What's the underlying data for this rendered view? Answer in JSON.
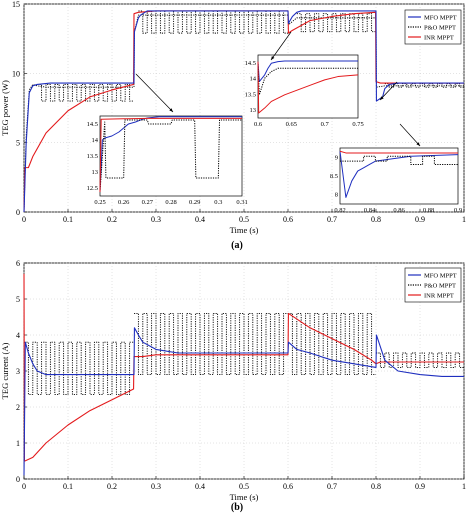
{
  "figure_labels": [
    "(a)",
    "(b)"
  ],
  "chart_data": [
    {
      "id": "a",
      "type": "line",
      "panel_label": "(a)",
      "xlabel": "Time (s)",
      "ylabel": "TEG power (W)",
      "xlim": [
        0,
        1
      ],
      "ylim": [
        0,
        15
      ],
      "xticks": [
        0,
        0.1,
        0.2,
        0.3,
        0.4,
        0.5,
        0.6,
        0.7,
        0.8,
        0.9,
        1
      ],
      "xtick_labels": [
        "0",
        "0.1",
        "0.2",
        "0.3",
        "0.4",
        "0.5",
        "0.6",
        "0.7",
        "0.8",
        "0.9",
        "1"
      ],
      "yticks": [
        0,
        5,
        10,
        15
      ],
      "ytick_labels": [
        "0",
        "5",
        "10",
        "15"
      ],
      "grid": true,
      "legend_position": "top-right",
      "series": [
        {
          "name": "MFO MPPT",
          "color": "#1f2fbf",
          "style": "solid",
          "x": [
            0,
            0.005,
            0.012,
            0.02,
            0.03,
            0.06,
            0.1,
            0.15,
            0.2,
            0.25,
            0.251,
            0.26,
            0.265,
            0.27,
            0.28,
            0.3,
            0.4,
            0.5,
            0.6,
            0.601,
            0.61,
            0.62,
            0.63,
            0.65,
            0.7,
            0.8,
            0.801,
            0.815,
            0.82,
            0.83,
            0.85,
            0.9,
            1.0
          ],
          "y": [
            0,
            5,
            8.6,
            9.1,
            9.2,
            9.3,
            9.3,
            9.3,
            9.3,
            9.3,
            13.0,
            14.0,
            14.2,
            14.3,
            14.5,
            14.5,
            14.5,
            14.5,
            14.5,
            13.6,
            14.1,
            14.4,
            14.5,
            14.5,
            14.5,
            14.5,
            8.0,
            8.3,
            8.9,
            9.2,
            9.3,
            9.3,
            9.3
          ]
        },
        {
          "name": "P&O MPPT",
          "color": "#000000",
          "style": "dotted",
          "x": [
            0,
            0.005,
            0.012,
            0.02,
            0.03,
            0.05,
            0.1,
            0.2,
            0.25,
            0.251,
            0.26,
            0.3,
            0.4,
            0.5,
            0.6,
            0.601,
            0.62,
            0.7,
            0.8,
            0.801,
            0.82,
            0.9,
            1.0
          ],
          "y": [
            0,
            5.5,
            8.8,
            9.2,
            9.1,
            9.0,
            9.0,
            9.0,
            9.0,
            13.0,
            14.2,
            14.2,
            14.2,
            14.2,
            14.2,
            13.5,
            14.0,
            14.0,
            14.0,
            9.0,
            9.1,
            9.1,
            9.1
          ]
        },
        {
          "name": "INR MPPT",
          "color": "#e31a1c",
          "style": "solid",
          "x": [
            0,
            0.002,
            0.01,
            0.02,
            0.05,
            0.1,
            0.15,
            0.2,
            0.249,
            0.25,
            0.26,
            0.3,
            0.4,
            0.5,
            0.6,
            0.601,
            0.61,
            0.65,
            0.7,
            0.75,
            0.799,
            0.8,
            0.81,
            0.82,
            0.85,
            0.9,
            1.0
          ],
          "y": [
            0,
            3.2,
            3.2,
            4.0,
            5.7,
            7.3,
            8.3,
            8.8,
            9.2,
            14.3,
            14.4,
            14.5,
            14.5,
            14.5,
            14.5,
            12.9,
            13.1,
            13.8,
            14.1,
            14.3,
            14.4,
            9.4,
            9.3,
            9.3,
            9.3,
            9.3,
            9.3
          ]
        }
      ],
      "po_oscillation": {
        "amplitude_low": [
          8.0,
          12.9,
          12.9,
          9.0
        ],
        "period": 0.02,
        "duty_low": 0.5
      },
      "insets": [
        {
          "id": "a-inset-1",
          "xlim": [
            0.25,
            0.31
          ],
          "ylim": [
            12.5,
            14.5
          ],
          "xtick_labels": [
            "0.25",
            "0.26",
            "0.27",
            "0.28",
            "0.29",
            "0.3",
            "0.31"
          ],
          "ytick_labels": [
            "12.5",
            "13",
            "13.5",
            "14",
            "14.5"
          ],
          "series": [
            {
              "name": "MFO MPPT",
              "x": [
                0.25,
                0.251,
                0.252,
                0.255,
                0.258,
                0.26,
                0.262,
                0.265,
                0.268,
                0.27,
                0.275,
                0.28,
                0.31
              ],
              "y": [
                12.6,
                13.9,
                13.95,
                14.0,
                14.1,
                14.2,
                14.3,
                14.35,
                14.42,
                14.45,
                14.48,
                14.48,
                14.48
              ]
            },
            {
              "name": "P&O MPPT",
              "x": [
                0.25,
                0.252,
                0.2525,
                0.26,
                0.2605,
                0.27,
                0.2705,
                0.28,
                0.2805,
                0.29,
                0.2905,
                0.3,
                0.3005,
                0.31
              ],
              "y": [
                12.6,
                14.35,
                12.95,
                12.95,
                14.4,
                14.4,
                14.3,
                14.3,
                14.4,
                14.4,
                12.95,
                12.95,
                14.4,
                14.4
              ]
            },
            {
              "name": "INR MPPT",
              "x": [
                0.25,
                0.2505,
                0.26,
                0.27,
                0.28,
                0.31
              ],
              "y": [
                12.6,
                14.42,
                14.43,
                14.44,
                14.44,
                14.44
              ]
            }
          ]
        },
        {
          "id": "a-inset-2",
          "xlim": [
            0.6,
            0.75
          ],
          "ylim": [
            12.8,
            14.7
          ],
          "xtick_labels": [
            "0.6",
            "0.65",
            "0.7",
            "0.75"
          ],
          "ytick_labels": [
            "13",
            "13.5",
            "14",
            "14.5"
          ],
          "series": [
            {
              "name": "MFO MPPT",
              "x": [
                0.6,
                0.602,
                0.61,
                0.615,
                0.62,
                0.63,
                0.64,
                0.65,
                0.7,
                0.75
              ],
              "y": [
                14.5,
                13.9,
                14.1,
                14.3,
                14.45,
                14.5,
                14.52,
                14.52,
                14.52,
                14.52
              ]
            },
            {
              "name": "P&O MPPT",
              "x": [
                0.6,
                0.602,
                0.61,
                0.62,
                0.63,
                0.65,
                0.7,
                0.75
              ],
              "y": [
                14.5,
                13.5,
                14.0,
                14.2,
                14.3,
                14.3,
                14.3,
                14.3
              ]
            },
            {
              "name": "INR MPPT",
              "x": [
                0.6,
                0.601,
                0.61,
                0.62,
                0.64,
                0.66,
                0.68,
                0.7,
                0.72,
                0.75
              ],
              "y": [
                14.5,
                12.95,
                13.1,
                13.3,
                13.5,
                13.65,
                13.8,
                13.95,
                14.05,
                14.1
              ]
            }
          ]
        },
        {
          "id": "a-inset-3",
          "xlim": [
            0.8,
            0.9
          ],
          "ylim": [
            7.8,
            9.5
          ],
          "xtick_labels": [
            "0.82",
            "0.84",
            "0.86",
            "0.88",
            "0.9"
          ],
          "ytick_labels": [
            "8",
            "8.5",
            "9"
          ],
          "series": [
            {
              "name": "MFO MPPT",
              "x": [
                0.8,
                0.805,
                0.81,
                0.815,
                0.82,
                0.825,
                0.83,
                0.84,
                0.85,
                0.86,
                0.9
              ],
              "y": [
                9.4,
                8.0,
                8.5,
                8.8,
                8.9,
                9.0,
                9.1,
                9.15,
                9.2,
                9.25,
                9.3
              ]
            },
            {
              "name": "P&O MPPT",
              "x": [
                0.8,
                0.82,
                0.82,
                0.83,
                0.83,
                0.84,
                0.84,
                0.86,
                0.86,
                0.87,
                0.87,
                0.88,
                0.88,
                0.9
              ],
              "y": [
                9.1,
                9.1,
                9.25,
                9.25,
                9.1,
                9.1,
                9.25,
                9.25,
                9.0,
                9.0,
                9.25,
                9.25,
                9.0,
                9.0
              ]
            },
            {
              "name": "INR MPPT",
              "x": [
                0.8,
                0.805,
                0.9
              ],
              "y": [
                9.4,
                9.35,
                9.35
              ]
            }
          ]
        }
      ]
    },
    {
      "id": "b",
      "type": "line",
      "panel_label": "(b)",
      "xlabel": "Time (s)",
      "ylabel": "TEG current (A)",
      "xlim": [
        0,
        1
      ],
      "ylim": [
        0,
        6
      ],
      "xticks": [
        0,
        0.1,
        0.2,
        0.3,
        0.4,
        0.5,
        0.6,
        0.7,
        0.8,
        0.9,
        1
      ],
      "xtick_labels": [
        "0",
        "0.1",
        "0.2",
        "0.3",
        "0.4",
        "0.5",
        "0.6",
        "0.7",
        "0.8",
        "0.9",
        "1"
      ],
      "yticks": [
        0,
        1,
        2,
        3,
        4,
        5,
        6
      ],
      "ytick_labels": [
        "0",
        "1",
        "2",
        "3",
        "4",
        "5",
        "6"
      ],
      "grid": true,
      "legend_position": "top-right",
      "series": [
        {
          "name": "MFO MPPT",
          "color": "#1f2fbf",
          "style": "solid",
          "x": [
            0,
            0.003,
            0.01,
            0.02,
            0.03,
            0.05,
            0.1,
            0.2,
            0.25,
            0.251,
            0.26,
            0.27,
            0.3,
            0.35,
            0.4,
            0.5,
            0.6,
            0.601,
            0.62,
            0.65,
            0.7,
            0.75,
            0.8,
            0.801,
            0.82,
            0.85,
            0.9,
            0.95,
            1.0
          ],
          "y": [
            0.1,
            3.8,
            3.5,
            3.2,
            3.0,
            2.9,
            2.9,
            2.9,
            2.9,
            4.2,
            4.0,
            3.8,
            3.6,
            3.5,
            3.5,
            3.5,
            3.5,
            3.8,
            3.6,
            3.5,
            3.3,
            3.2,
            3.1,
            4.0,
            3.3,
            3.0,
            2.9,
            2.85,
            2.85
          ]
        },
        {
          "name": "P&O MPPT",
          "color": "#000000",
          "style": "dotted",
          "levels": {
            "p1": [
              2.9,
              3.8
            ],
            "p2": [
              2.9,
              4.6
            ],
            "p3": [
              2.9,
              4.6
            ],
            "p4": [
              3.1,
              3.5
            ]
          }
        },
        {
          "name": "INR MPPT",
          "color": "#e31a1c",
          "style": "solid",
          "x": [
            0,
            0.001,
            0.002,
            0.02,
            0.05,
            0.1,
            0.15,
            0.2,
            0.249,
            0.25,
            0.27,
            0.3,
            0.4,
            0.5,
            0.6,
            0.601,
            0.65,
            0.7,
            0.75,
            0.79,
            0.8,
            0.81,
            0.9,
            1.0
          ],
          "y": [
            5.7,
            0.5,
            0.5,
            0.6,
            1.0,
            1.5,
            1.9,
            2.2,
            2.5,
            3.4,
            3.4,
            3.45,
            3.45,
            3.45,
            3.45,
            4.6,
            4.2,
            3.9,
            3.6,
            3.3,
            3.2,
            3.25,
            3.25,
            3.25
          ]
        }
      ]
    }
  ]
}
